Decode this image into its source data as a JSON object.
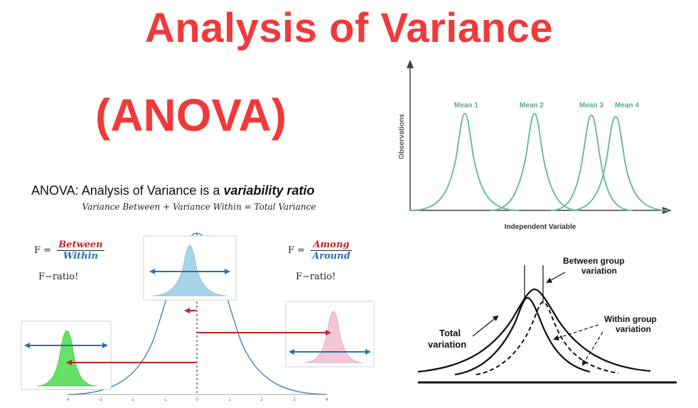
{
  "title": "Analysis of Variance",
  "subtitle": "(ANOVA)",
  "ratio_heading": {
    "prefix": "ANOVA: Analysis of Variance is a ",
    "emphasis": "variability ratio"
  },
  "variance_equation": "Variance Between + Variance Within = Total Variance",
  "formula_left": {
    "lhs": "F =",
    "numerator": "Between",
    "denominator": "Within",
    "caption": "F−ratio!"
  },
  "formula_right": {
    "lhs": "F =",
    "numerator": "Among",
    "denominator": "Around",
    "caption": "F−ratio!"
  },
  "bell_axis_ticks": [
    "-4",
    "-3",
    "-2",
    "-1",
    "0",
    "1",
    "2",
    "3",
    "4"
  ],
  "means_chart": {
    "ylabel": "Observations",
    "xlabel": "Independent Variable",
    "means": [
      "Mean 1",
      "Mean 2",
      "Mean 3",
      "Mean 4"
    ],
    "curve_color": "#6fb9a3"
  },
  "variation_chart": {
    "between_label_line1": "Between group",
    "between_label_line2": "variation",
    "within_label_line1": "Within group",
    "within_label_line2": "variation",
    "total_label_line1": "Total",
    "total_label_line2": "variation"
  },
  "colors": {
    "title": "#f03a3a",
    "arrow_red": "#c8202a",
    "arrow_blue": "#2a6fb0",
    "box_blue_fill": "#a8d4e8",
    "box_green_fill": "#66e066",
    "box_pink_fill": "#f5c6d6"
  }
}
